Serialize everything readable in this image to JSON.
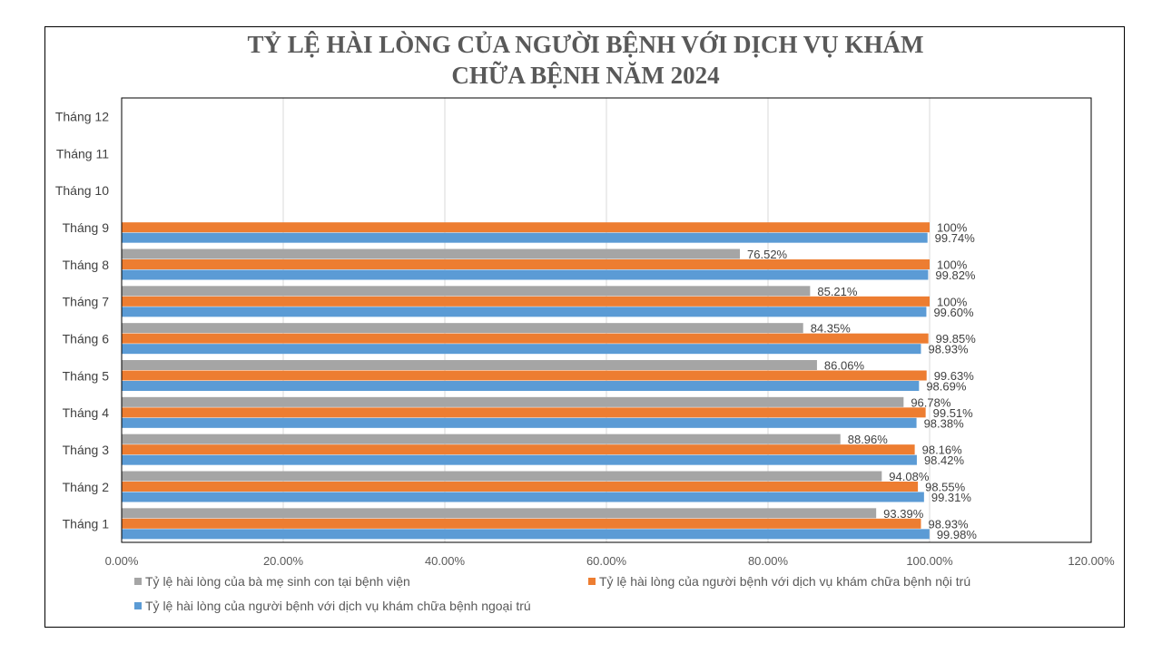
{
  "chart_data": {
    "type": "bar",
    "orientation": "horizontal",
    "title_lines": [
      "TỶ LỆ HÀI LÒNG CỦA NGƯỜI BỆNH VỚI DỊCH VỤ KHÁM",
      "CHỮA BỆNH NĂM 2024"
    ],
    "categories": [
      "Tháng 1",
      "Tháng 2",
      "Tháng 3",
      "Tháng 4",
      "Tháng 5",
      "Tháng 6",
      "Tháng 7",
      "Tháng 8",
      "Tháng 9",
      "Tháng 10",
      "Tháng 11",
      "Tháng 12"
    ],
    "xlim": [
      0,
      120
    ],
    "x_ticks": [
      "0.00%",
      "20.00%",
      "40.00%",
      "60.00%",
      "80.00%",
      "100.00%",
      "120.00%"
    ],
    "grid": "vertical",
    "legend_position": "bottom",
    "series": [
      {
        "name": "Tỷ lệ hài lòng của bà mẹ sinh con tại bệnh viện",
        "color": "#a5a5a5",
        "values": [
          93.39,
          94.08,
          88.96,
          96.78,
          86.06,
          84.35,
          85.21,
          76.52,
          null,
          null,
          null,
          null
        ],
        "labels": [
          "93.39%",
          "94.08%",
          "88.96%",
          "96.78%",
          "86.06%",
          "84.35%",
          "85.21%",
          "76.52%",
          "",
          "",
          "",
          ""
        ]
      },
      {
        "name": "Tỷ lệ hài lòng của người bệnh với dịch vụ khám chữa bệnh nội trú",
        "color": "#ed7d31",
        "values": [
          98.93,
          98.55,
          98.16,
          99.51,
          99.63,
          99.85,
          100,
          100,
          100,
          null,
          null,
          null
        ],
        "labels": [
          "98.93%",
          "98.55%",
          "98.16%",
          "99.51%",
          "99.63%",
          "99.85%",
          "100%",
          "100%",
          "100%",
          "",
          "",
          ""
        ]
      },
      {
        "name": "Tỷ lệ hài lòng của người bệnh với dịch vụ khám chữa bệnh ngoại trú",
        "color": "#5b9bd5",
        "values": [
          99.98,
          99.31,
          98.42,
          98.38,
          98.69,
          98.93,
          99.6,
          99.82,
          99.74,
          null,
          null,
          null
        ],
        "labels": [
          "99.98%",
          "99.31%",
          "98.42%",
          "98.38%",
          "98.69%",
          "98.93%",
          "99.60%",
          "99.82%",
          "99.74%",
          "",
          "",
          ""
        ]
      }
    ]
  }
}
